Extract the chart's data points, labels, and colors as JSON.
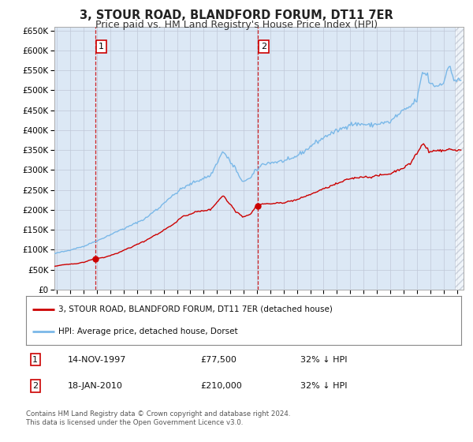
{
  "title": "3, STOUR ROAD, BLANDFORD FORUM, DT11 7ER",
  "subtitle": "Price paid vs. HM Land Registry's House Price Index (HPI)",
  "legend_line1": "3, STOUR ROAD, BLANDFORD FORUM, DT11 7ER (detached house)",
  "legend_line2": "HPI: Average price, detached house, Dorset",
  "transaction1_date": "14-NOV-1997",
  "transaction1_price": 77500,
  "transaction1_label": "32% ↓ HPI",
  "transaction2_date": "18-JAN-2010",
  "transaction2_price": 210000,
  "transaction2_label": "32% ↓ HPI",
  "footer": "Contains HM Land Registry data © Crown copyright and database right 2024.\nThis data is licensed under the Open Government Licence v3.0.",
  "hpi_color": "#7ab8e8",
  "property_color": "#cc0000",
  "bg_color": "#dce8f5",
  "vline_color": "#cc0000",
  "grid_color": "#c0c8d8",
  "ylim": [
    0,
    660000
  ],
  "yticks": [
    0,
    50000,
    100000,
    150000,
    200000,
    250000,
    300000,
    350000,
    400000,
    450000,
    500000,
    550000,
    600000,
    650000
  ],
  "xlim_start": 1994.8,
  "xlim_end": 2025.5,
  "t1_x": 1997.87,
  "t2_x": 2010.04,
  "hatch_start": 2024.87
}
